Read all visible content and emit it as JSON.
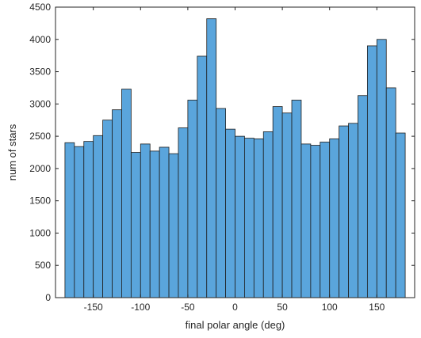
{
  "chart_data": {
    "type": "bar",
    "subtype": "histogram",
    "xlabel": "final polar angle (deg)",
    "ylabel": "num of stars",
    "xlim": [
      -190,
      190
    ],
    "ylim": [
      0,
      4500
    ],
    "bin_width": 10,
    "bin_edges_start": -180,
    "x_ticks": [
      -150,
      -100,
      -50,
      0,
      50,
      100,
      150
    ],
    "y_ticks": [
      0,
      500,
      1000,
      1500,
      2000,
      2500,
      3000,
      3500,
      4000,
      4500
    ],
    "x_tick_labels": [
      "-150",
      "-100",
      "-50",
      "0",
      "50",
      "100",
      "150"
    ],
    "y_tick_labels": [
      "0",
      "500",
      "1000",
      "1500",
      "2000",
      "2500",
      "3000",
      "3500",
      "4000",
      "4500"
    ],
    "values": [
      2400,
      2340,
      2420,
      2510,
      2750,
      2910,
      3230,
      2250,
      2380,
      2270,
      2330,
      2230,
      2630,
      3060,
      3740,
      4320,
      2930,
      2610,
      2500,
      2470,
      2460,
      2570,
      2960,
      2860,
      3060,
      2380,
      2360,
      2410,
      2460,
      2660,
      2700,
      3130,
      3900,
      4000,
      3250,
      2550
    ],
    "bar_color": "#5aa5dc",
    "edge_color": "#1f1f1f",
    "grid": false,
    "box": true
  }
}
